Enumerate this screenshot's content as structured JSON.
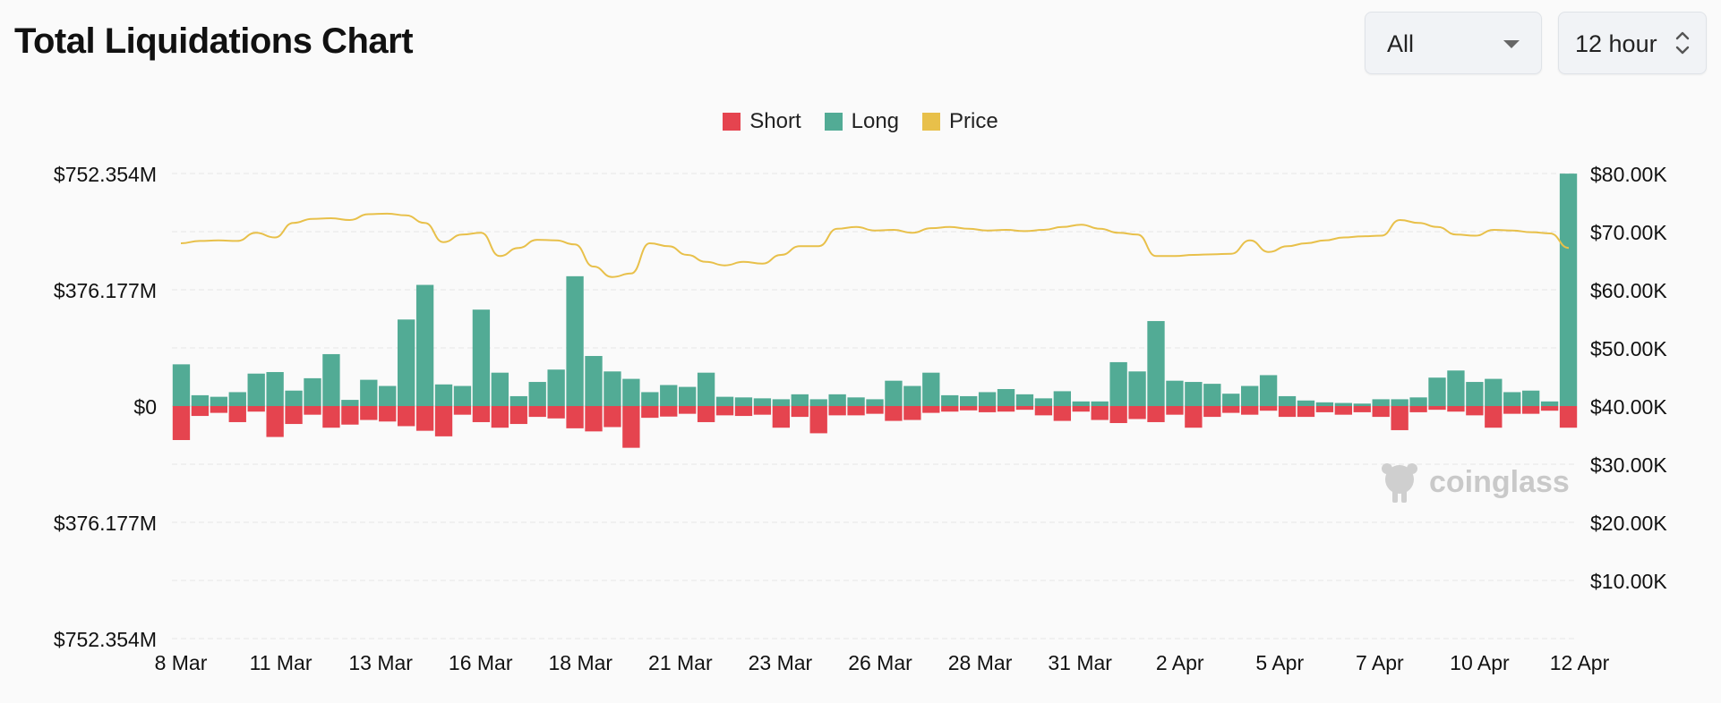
{
  "header": {
    "title": "Total Liquidations Chart",
    "coin_select": "All",
    "interval_select": "12 hour"
  },
  "watermark": "coinglass",
  "colors": {
    "short": "#e5444f",
    "long": "#52ab95",
    "price": "#e8c04a",
    "grid": "#e9e9e9"
  },
  "chart_data": {
    "type": "bar",
    "title": "Total Liquidations Chart",
    "legend": [
      {
        "name": "Short",
        "color": "#e5444f"
      },
      {
        "name": "Long",
        "color": "#52ab95"
      },
      {
        "name": "Price",
        "color": "#e8c04a"
      }
    ],
    "left_axis": {
      "ticks": [
        "$752.354M",
        "$376.177M",
        "$0",
        "$376.177M",
        "$752.354M"
      ],
      "range_millions": [
        -752.354,
        752.354
      ]
    },
    "right_axis": {
      "ticks": [
        "$80.00K",
        "$70.00K",
        "$60.00K",
        "$50.00K",
        "$40.00K",
        "$30.00K",
        "$20.00K",
        "$10.00K"
      ],
      "range_thousands": [
        0,
        80
      ]
    },
    "x_ticks": [
      "8 Mar",
      "11 Mar",
      "13 Mar",
      "16 Mar",
      "18 Mar",
      "21 Mar",
      "23 Mar",
      "26 Mar",
      "28 Mar",
      "31 Mar",
      "2 Apr",
      "5 Apr",
      "7 Apr",
      "10 Apr",
      "12 Apr"
    ],
    "series": [
      {
        "name": "Long",
        "unit": "USD millions",
        "values": [
          135,
          35,
          30,
          45,
          105,
          110,
          50,
          90,
          168,
          20,
          85,
          65,
          280,
          392,
          70,
          65,
          312,
          108,
          32,
          78,
          118,
          420,
          162,
          112,
          88,
          45,
          68,
          62,
          108,
          30,
          28,
          25,
          22,
          38,
          22,
          38,
          28,
          22,
          82,
          65,
          108,
          35,
          32,
          45,
          55,
          38,
          25,
          48,
          15,
          15,
          142,
          112,
          275,
          82,
          78,
          72,
          40,
          65,
          100,
          32,
          18,
          12,
          10,
          8,
          22,
          22,
          28,
          92,
          115,
          78,
          88,
          45,
          50,
          15,
          752
        ]
      },
      {
        "name": "Short",
        "unit": "USD millions",
        "values": [
          110,
          32,
          22,
          52,
          18,
          100,
          58,
          28,
          70,
          60,
          45,
          50,
          65,
          80,
          98,
          28,
          52,
          70,
          58,
          35,
          40,
          72,
          82,
          68,
          135,
          38,
          34,
          25,
          52,
          30,
          32,
          28,
          70,
          35,
          88,
          30,
          30,
          25,
          48,
          45,
          22,
          18,
          14,
          20,
          18,
          12,
          30,
          48,
          18,
          45,
          55,
          42,
          52,
          28,
          70,
          35,
          22,
          28,
          15,
          35,
          35,
          20,
          28,
          20,
          35,
          78,
          20,
          12,
          18,
          30,
          70,
          25,
          25,
          15,
          70
        ]
      },
      {
        "name": "Price",
        "unit": "USD thousands",
        "values": [
          68.0,
          68.4,
          68.5,
          68.4,
          69.8,
          69.0,
          71.5,
          72.2,
          72.3,
          72.0,
          73.0,
          73.1,
          72.8,
          71.5,
          68.2,
          69.5,
          69.8,
          65.8,
          67.2,
          68.6,
          68.5,
          67.8,
          64.0,
          62.2,
          62.8,
          68.0,
          67.5,
          66.0,
          64.8,
          64.2,
          64.8,
          64.5,
          66.0,
          67.5,
          67.5,
          70.5,
          70.8,
          70.2,
          70.3,
          69.8,
          70.6,
          70.8,
          70.5,
          70.2,
          70.3,
          70.1,
          70.3,
          70.8,
          71.2,
          70.5,
          69.8,
          69.5,
          65.8,
          65.8,
          66.0,
          66.1,
          66.2,
          68.5,
          66.5,
          67.5,
          68.0,
          68.5,
          69.0,
          69.2,
          69.3,
          72.0,
          71.5,
          70.8,
          69.5,
          69.3,
          70.3,
          70.2,
          69.9,
          69.7,
          67.2
        ]
      }
    ]
  }
}
